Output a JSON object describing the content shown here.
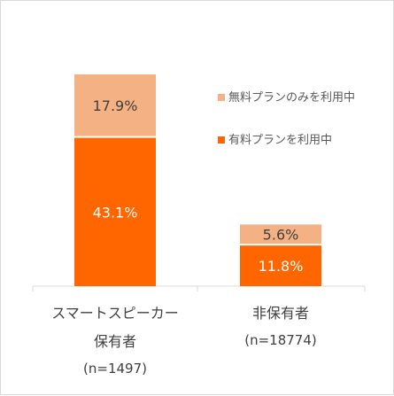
{
  "chart_data": {
    "type": "bar",
    "stacked": true,
    "categories": [
      {
        "lines": [
          "スマートスピーカー",
          "保有者"
        ],
        "sample": "(n=1497)"
      },
      {
        "lines": [
          "非保有者"
        ],
        "sample": "(n=18774)"
      }
    ],
    "series": [
      {
        "name": "有料プランを利用中",
        "values": [
          43.1,
          11.8
        ],
        "labels": [
          "43.1%",
          "11.8%"
        ],
        "color": "#ff6600"
      },
      {
        "name": "無料プランのみを利用中",
        "values": [
          17.9,
          5.6
        ],
        "labels": [
          "17.9%",
          "5.6%"
        ],
        "color": "#f4b183"
      }
    ],
    "legend": {
      "placement": "right",
      "order": [
        "無料プランのみを利用中",
        "有料プランを利用中"
      ]
    },
    "ylim": [
      0,
      62
    ],
    "grid": false
  }
}
